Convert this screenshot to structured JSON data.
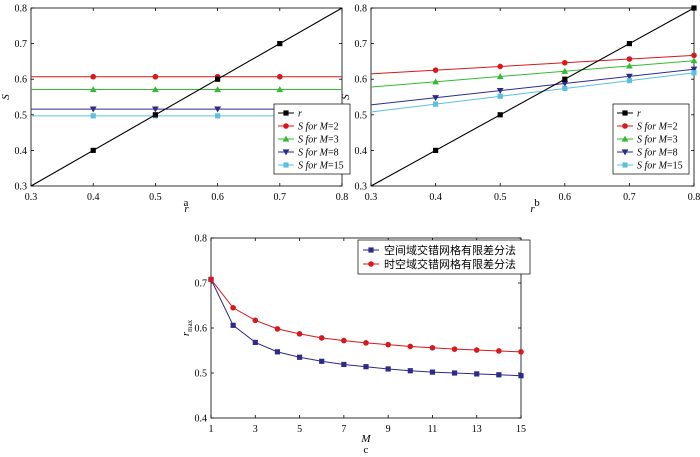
{
  "chart_data": [
    {
      "panel_label": "a",
      "type": "line",
      "xlabel": "r",
      "ylabel": "S",
      "xlim": [
        0.3,
        0.8
      ],
      "ylim": [
        0.3,
        0.8
      ],
      "xticks": [
        "0.3",
        "0.4",
        "0.5",
        "0.6",
        "0.7",
        "0.8"
      ],
      "yticks": [
        "0.3",
        "0.4",
        "0.5",
        "0.6",
        "0.7",
        "0.8"
      ],
      "legend_position": "bottom-right",
      "marker_x": [
        0.4,
        0.5,
        0.6,
        0.7
      ],
      "series": [
        {
          "name": "r",
          "legend_main": "r",
          "legend_sub": "",
          "color": "#000000",
          "marker": "square",
          "x": [
            0.3,
            0.8
          ],
          "y": [
            0.3,
            0.8
          ]
        },
        {
          "name": "S for M=2",
          "legend_main": "S for M",
          "legend_sub": "=2",
          "color": "#d7191c",
          "marker": "circle",
          "x": [
            0.3,
            0.8
          ],
          "y": [
            0.607,
            0.607
          ]
        },
        {
          "name": "S for M=3",
          "legend_main": "S for M",
          "legend_sub": "=3",
          "color": "#33bb33",
          "marker": "triangle-up",
          "x": [
            0.3,
            0.8
          ],
          "y": [
            0.571,
            0.571
          ]
        },
        {
          "name": "S for M=8",
          "legend_main": "S for M",
          "legend_sub": "=8",
          "color": "#2e2a8c",
          "marker": "triangle-down",
          "x": [
            0.3,
            0.8
          ],
          "y": [
            0.516,
            0.516
          ]
        },
        {
          "name": "S for M=15",
          "legend_main": "S for M",
          "legend_sub": "=15",
          "color": "#5bc0de",
          "marker": "square",
          "x": [
            0.3,
            0.8
          ],
          "y": [
            0.497,
            0.497
          ]
        }
      ]
    },
    {
      "panel_label": "b",
      "type": "line",
      "xlabel": "r",
      "ylabel": "S",
      "xlim": [
        0.3,
        0.8
      ],
      "ylim": [
        0.3,
        0.8
      ],
      "xticks": [
        "0.3",
        "0.4",
        "0.5",
        "0.6",
        "0.7",
        "0.8"
      ],
      "yticks": [
        "0.3",
        "0.4",
        "0.5",
        "0.6",
        "0.7",
        "0.8"
      ],
      "legend_position": "bottom-right",
      "marker_x": [
        0.4,
        0.5,
        0.6,
        0.7,
        0.8
      ],
      "series": [
        {
          "name": "r",
          "legend_main": "r",
          "legend_sub": "",
          "color": "#000000",
          "marker": "square",
          "x": [
            0.3,
            0.8
          ],
          "y": [
            0.3,
            0.8
          ]
        },
        {
          "name": "S for M=2",
          "legend_main": "S for M",
          "legend_sub": "=2",
          "color": "#d7191c",
          "marker": "circle",
          "x": [
            0.3,
            0.8
          ],
          "y": [
            0.615,
            0.667
          ]
        },
        {
          "name": "S for M=3",
          "legend_main": "S for M",
          "legend_sub": "=3",
          "color": "#33bb33",
          "marker": "triangle-up",
          "x": [
            0.3,
            0.8
          ],
          "y": [
            0.578,
            0.652
          ]
        },
        {
          "name": "S for M=8",
          "legend_main": "S for M",
          "legend_sub": "=8",
          "color": "#2e2a8c",
          "marker": "triangle-down",
          "x": [
            0.3,
            0.8
          ],
          "y": [
            0.528,
            0.628
          ]
        },
        {
          "name": "S for M=15",
          "legend_main": "S for M",
          "legend_sub": "=15",
          "color": "#5bc0de",
          "marker": "square",
          "x": [
            0.3,
            0.8
          ],
          "y": [
            0.508,
            0.618
          ]
        }
      ]
    },
    {
      "panel_label": "c",
      "type": "line",
      "xlabel": "M",
      "ylabel": "r",
      "ylabel_sub": "max",
      "xlim": [
        1,
        15
      ],
      "ylim": [
        0.4,
        0.8
      ],
      "xticks": [
        "1",
        "3",
        "5",
        "7",
        "9",
        "11",
        "13",
        "15"
      ],
      "yticks": [
        "0.4",
        "0.5",
        "0.6",
        "0.7",
        "0.8"
      ],
      "legend_position": "top-right",
      "series": [
        {
          "name": "空间域交错网格有限差分法",
          "color": "#2e2a8c",
          "marker": "square",
          "x": [
            1,
            2,
            3,
            4,
            5,
            6,
            7,
            8,
            9,
            10,
            11,
            12,
            13,
            14,
            15
          ],
          "y": [
            0.708,
            0.606,
            0.568,
            0.547,
            0.535,
            0.526,
            0.519,
            0.514,
            0.509,
            0.505,
            0.502,
            0.5,
            0.498,
            0.496,
            0.494
          ]
        },
        {
          "name": "时空域交错网格有限差分法",
          "color": "#d7191c",
          "marker": "circle",
          "x": [
            1,
            2,
            3,
            4,
            5,
            6,
            7,
            8,
            9,
            10,
            11,
            12,
            13,
            14,
            15
          ],
          "y": [
            0.708,
            0.645,
            0.617,
            0.598,
            0.587,
            0.578,
            0.572,
            0.567,
            0.563,
            0.559,
            0.556,
            0.553,
            0.551,
            0.549,
            0.547
          ]
        }
      ]
    }
  ]
}
